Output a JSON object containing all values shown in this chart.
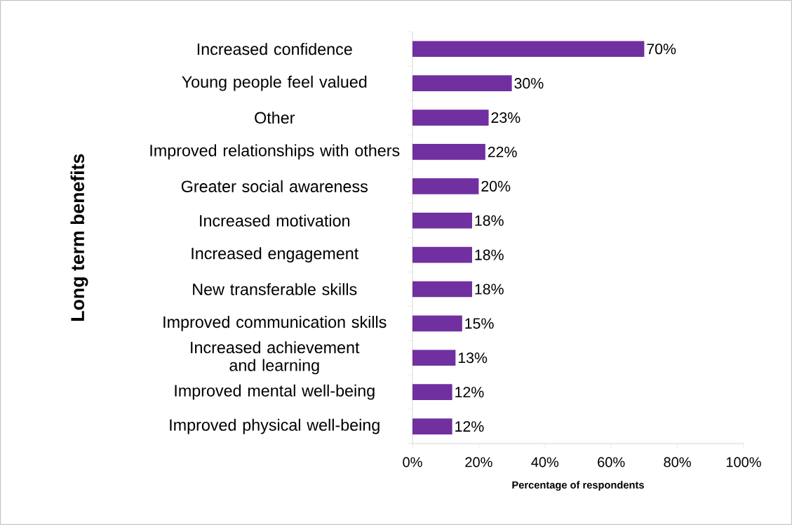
{
  "chart_data": {
    "type": "bar",
    "orientation": "horizontal",
    "xlabel": "Percentage of respondents",
    "ylabel": "Long term benefits",
    "categories": [
      "Increased confidence",
      "Young people feel valued",
      "Other",
      "Improved relationships with others",
      "Greater social awareness",
      "Increased motivation",
      "Increased engagement",
      "New transferable skills",
      "Improved communication skills",
      "Increased achievement and learning",
      "Improved mental well-being",
      "Improved physical well-being"
    ],
    "values": [
      70,
      30,
      23,
      22,
      20,
      18,
      18,
      18,
      15,
      13,
      12,
      12
    ],
    "value_labels": [
      "70%",
      "30%",
      "23%",
      "22%",
      "20%",
      "18%",
      "18%",
      "18%",
      "15%",
      "13%",
      "12%",
      "12%"
    ],
    "color": "#7030a0",
    "xlim": [
      0,
      100
    ],
    "xticks": [
      {
        "value": 0,
        "label": "0%"
      },
      {
        "value": 20,
        "label": "20%"
      },
      {
        "value": 40,
        "label": "40%"
      },
      {
        "value": 60,
        "label": "60%"
      },
      {
        "value": 80,
        "label": "80%"
      },
      {
        "value": 100,
        "label": "100%"
      }
    ]
  }
}
